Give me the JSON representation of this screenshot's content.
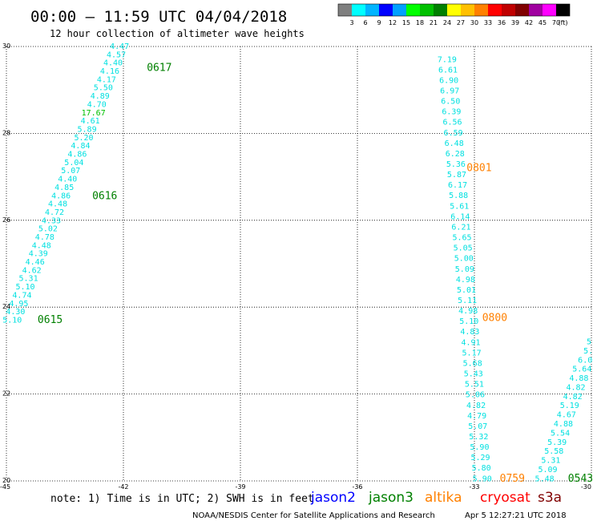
{
  "header": {
    "title": "00:00 – 11:59 UTC 04/04/2018",
    "subtitle": "12 hour collection of altimeter wave heights"
  },
  "colorbar": {
    "colors": [
      "#7f7f7f",
      "#00ffff",
      "#00b4ff",
      "#0000ff",
      "#00a0ff",
      "#00ff00",
      "#00c000",
      "#008000",
      "#ffff00",
      "#ffc000",
      "#ff8000",
      "#ff0000",
      "#c00000",
      "#800000",
      "#a000a0",
      "#ff00ff",
      "#000000"
    ],
    "labels": [
      "3",
      "6",
      "9",
      "12",
      "15",
      "18",
      "21",
      "24",
      "27",
      "30",
      "33",
      "36",
      "39",
      "42",
      "45",
      "70",
      "(ft)"
    ]
  },
  "footer": {
    "note": "note: 1) Time is in UTC; 2) SWH is in feet",
    "credit": "NOAA/NESDIS Center for Satellite Applications and Research",
    "timestamp": "Apr  5 12:27:21 UTC 2018",
    "legend": [
      {
        "name": "jason2",
        "color": "#0000ff"
      },
      {
        "name": "jason3",
        "color": "#008000"
      },
      {
        "name": "altika",
        "color": "#ff8000"
      },
      {
        "name": "cryosat",
        "color": "#ff0000"
      },
      {
        "name": "s3a",
        "color": "#800000"
      }
    ]
  },
  "chart_data": {
    "type": "scatter",
    "title": "00:00 – 11:59 UTC 04/04/2018",
    "subtitle": "12 hour collection of altimeter wave heights",
    "xlim": [
      -45,
      -30
    ],
    "ylim": [
      20,
      30
    ],
    "x_ticks": [
      -45,
      -42,
      -39,
      -36,
      -33,
      -30
    ],
    "x_tick_labels": [
      "-45",
      "-42",
      "-39",
      "-36",
      "-33",
      "-30"
    ],
    "y_ticks": [
      20,
      22,
      24,
      26,
      28,
      30
    ],
    "y_tick_labels": [
      "20",
      "22",
      "24",
      "26",
      "28",
      "30"
    ],
    "grid": true,
    "track_color": "#00e0e0",
    "tracks": [
      {
        "start": [
          -44.85,
          23.7
        ],
        "end": [
          -42.1,
          30.0
        ],
        "values": [
          "5.10",
          "4.30",
          "4.95",
          "4.74",
          "5.10",
          "5.31",
          "4.62",
          "4.46",
          "4.39",
          "4.48",
          "4.78",
          "5.02",
          "4.33",
          "4.72",
          "4.48",
          "4.86",
          "4.85",
          "4.40",
          "5.07",
          "5.04",
          "4.86",
          "4.84",
          "5.20",
          "5.89",
          "4.61",
          "17.67",
          "4.70",
          "4.89",
          "5.50",
          "4.17",
          "4.16",
          "4.40",
          "4.57",
          "4.47"
        ],
        "colors": {
          "17.67": "#00c000"
        }
      },
      {
        "start": [
          -33.7,
          29.7
        ],
        "end": [
          -32.8,
          20.05
        ],
        "values": [
          "7.19",
          "6.61",
          "6.90",
          "6.97",
          "6.50",
          "6.39",
          "6.56",
          "6.59",
          "6.48",
          "6.28",
          "5.36",
          "5.87",
          "6.17",
          "5.88",
          "5.61",
          "6.14",
          "6.21",
          "5.65",
          "5.05",
          "5.00",
          "5.09",
          "4.98",
          "5.01",
          "5.11",
          "4.98",
          "5.10",
          "4.83",
          "4.91",
          "5.17",
          "5.68",
          "5.43",
          "5.51",
          "5.06",
          "4.82",
          "4.79",
          "5.07",
          "5.32",
          "5.90",
          "5.29",
          "5.80",
          "5.90"
        ],
        "colors": {}
      },
      {
        "start": [
          -31.2,
          20.05
        ],
        "end": [
          -30.0,
          23.2
        ],
        "values": [
          "5.48",
          "5.09",
          "5.31",
          "5.58",
          "5.39",
          "5.54",
          "4.88",
          "4.67",
          "5.19",
          "4.82",
          "4.82",
          "4.88",
          "5.64",
          "6.0",
          "5.",
          "5."
        ],
        "colors": {}
      }
    ],
    "time_labels": [
      {
        "text": "0617",
        "x": -41.4,
        "y": 29.5,
        "satellite": "jason3",
        "color": "#008000"
      },
      {
        "text": "0616",
        "x": -42.8,
        "y": 26.55,
        "satellite": "jason3",
        "color": "#008000"
      },
      {
        "text": "0615",
        "x": -44.2,
        "y": 23.7,
        "satellite": "jason3",
        "color": "#008000"
      },
      {
        "text": "0801",
        "x": -33.2,
        "y": 27.2,
        "satellite": "altika",
        "color": "#ff8000"
      },
      {
        "text": "0800",
        "x": -32.8,
        "y": 23.75,
        "satellite": "altika",
        "color": "#ff8000"
      },
      {
        "text": "0759",
        "x": -32.35,
        "y": 20.05,
        "satellite": "altika",
        "color": "#ff8000"
      },
      {
        "text": "0543",
        "x": -30.6,
        "y": 20.05,
        "satellite": "jason3",
        "color": "#008000"
      }
    ]
  }
}
